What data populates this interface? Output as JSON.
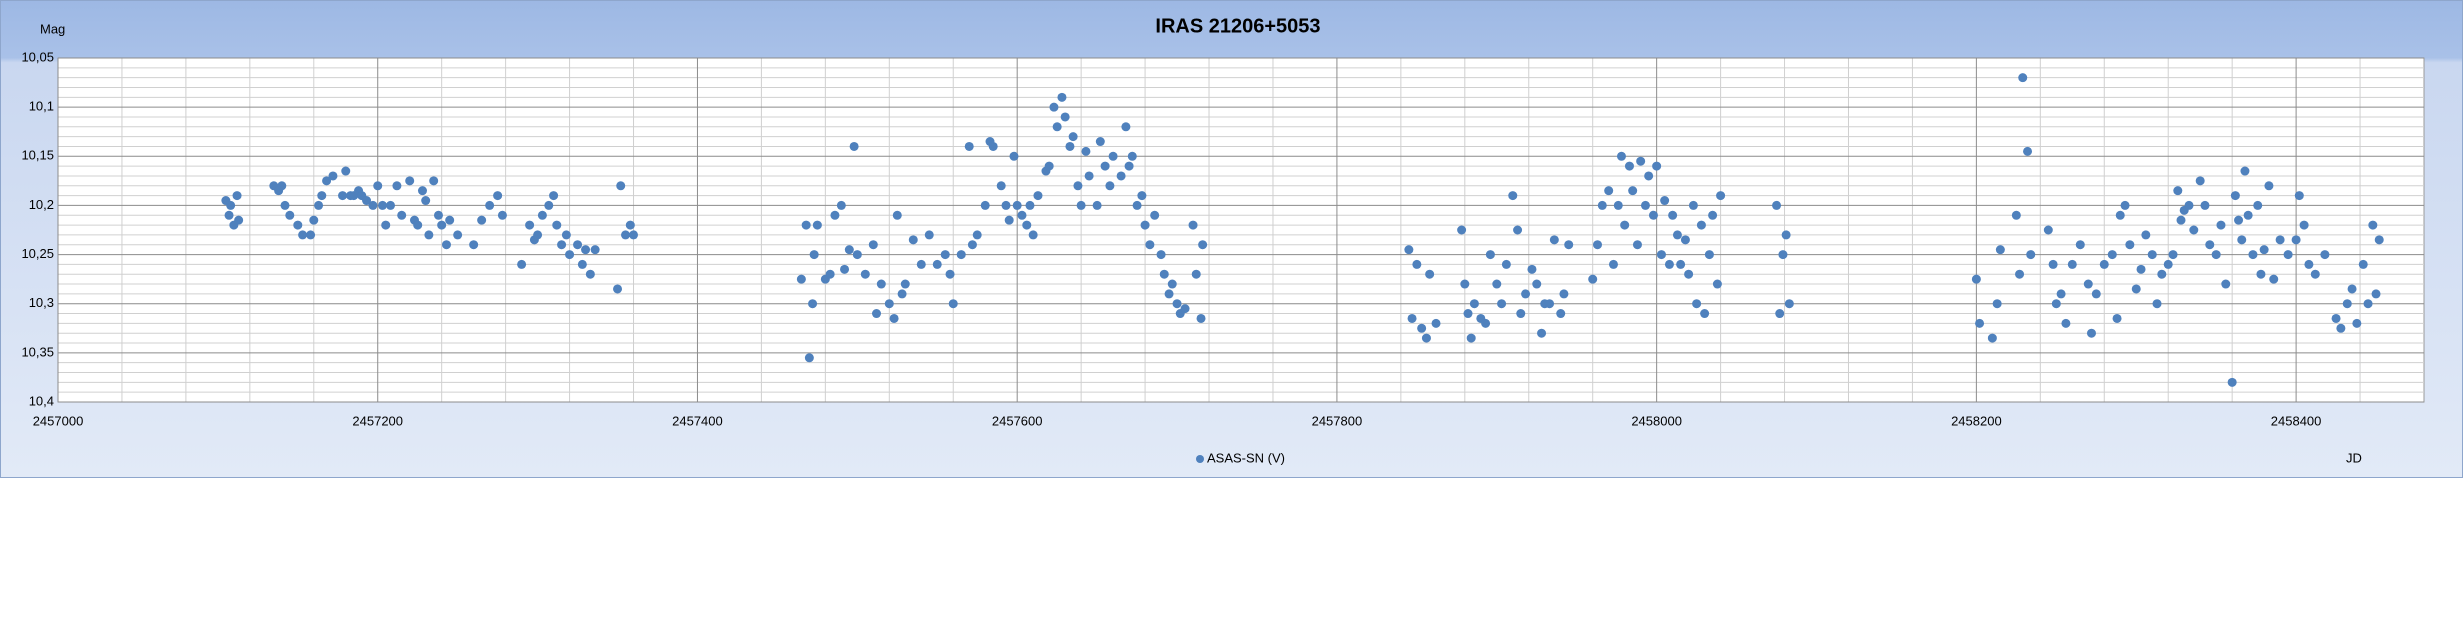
{
  "chart_data": {
    "type": "scatter",
    "title": "IRAS 21206+5053",
    "ylabel": "Mag",
    "xlabel": "JD",
    "xlim": [
      2457000,
      2458480
    ],
    "ylim": [
      10.05,
      10.4
    ],
    "y_reversed": true,
    "grid": true,
    "legend": "bottom",
    "xticks": [
      2457000,
      2457200,
      2457400,
      2457600,
      2457800,
      2458000,
      2458200,
      2458400
    ],
    "yticks": [
      {
        "value": 10.05,
        "label": "10,05"
      },
      {
        "value": 10.1,
        "label": "10,1"
      },
      {
        "value": 10.15,
        "label": "10,15"
      },
      {
        "value": 10.2,
        "label": "10,2"
      },
      {
        "value": 10.25,
        "label": "10,25"
      },
      {
        "value": 10.3,
        "label": "10,3"
      },
      {
        "value": 10.35,
        "label": "10,35"
      },
      {
        "value": 10.4,
        "label": "10,4"
      }
    ],
    "xminorticks": [
      2457040,
      2457080,
      2457120,
      2457160,
      2457240,
      2457280,
      2457320,
      2457360,
      2457440,
      2457480,
      2457520,
      2457560,
      2457640,
      2457680,
      2457720,
      2457760,
      2457840,
      2457880,
      2457920,
      2457960,
      2458040,
      2458080,
      2458120,
      2458160,
      2458240,
      2458280,
      2458320,
      2458360,
      2458440
    ],
    "yminorticks": [
      10.06,
      10.07,
      10.08,
      10.09,
      10.11,
      10.12,
      10.13,
      10.14,
      10.16,
      10.17,
      10.18,
      10.19,
      10.21,
      10.22,
      10.23,
      10.24,
      10.26,
      10.27,
      10.28,
      10.29,
      10.31,
      10.32,
      10.33,
      10.34,
      10.36,
      10.37,
      10.38,
      10.39
    ],
    "series": [
      {
        "name": "ASAS-SN (V)",
        "color": "#4f81bd",
        "x": [
          2457105,
          2457107,
          2457108,
          2457110,
          2457112,
          2457113,
          2457135,
          2457138,
          2457140,
          2457142,
          2457145,
          2457150,
          2457153,
          2457158,
          2457160,
          2457163,
          2457165,
          2457168,
          2457172,
          2457178,
          2457180,
          2457183,
          2457185,
          2457188,
          2457190,
          2457193,
          2457197,
          2457200,
          2457203,
          2457205,
          2457208,
          2457212,
          2457215,
          2457220,
          2457223,
          2457225,
          2457228,
          2457230,
          2457232,
          2457235,
          2457238,
          2457240,
          2457243,
          2457245,
          2457250,
          2457260,
          2457265,
          2457270,
          2457275,
          2457278,
          2457290,
          2457295,
          2457298,
          2457300,
          2457303,
          2457307,
          2457310,
          2457312,
          2457315,
          2457318,
          2457320,
          2457325,
          2457328,
          2457330,
          2457333,
          2457336,
          2457350,
          2457352,
          2457355,
          2457358,
          2457360,
          2457465,
          2457468,
          2457470,
          2457472,
          2457473,
          2457475,
          2457480,
          2457483,
          2457486,
          2457490,
          2457492,
          2457495,
          2457498,
          2457500,
          2457505,
          2457510,
          2457512,
          2457515,
          2457520,
          2457523,
          2457525,
          2457528,
          2457530,
          2457535,
          2457540,
          2457545,
          2457550,
          2457555,
          2457558,
          2457560,
          2457565,
          2457570,
          2457572,
          2457575,
          2457580,
          2457583,
          2457585,
          2457590,
          2457593,
          2457595,
          2457598,
          2457600,
          2457603,
          2457606,
          2457608,
          2457610,
          2457613,
          2457618,
          2457620,
          2457623,
          2457625,
          2457628,
          2457630,
          2457633,
          2457635,
          2457638,
          2457640,
          2457643,
          2457645,
          2457650,
          2457652,
          2457655,
          2457658,
          2457660,
          2457665,
          2457668,
          2457670,
          2457672,
          2457675,
          2457678,
          2457680,
          2457683,
          2457686,
          2457690,
          2457692,
          2457695,
          2457697,
          2457700,
          2457702,
          2457705,
          2457710,
          2457712,
          2457715,
          2457716,
          2457845,
          2457847,
          2457850,
          2457853,
          2457856,
          2457858,
          2457862,
          2457878,
          2457880,
          2457882,
          2457884,
          2457886,
          2457890,
          2457893,
          2457896,
          2457900,
          2457903,
          2457906,
          2457910,
          2457913,
          2457915,
          2457918,
          2457922,
          2457925,
          2457928,
          2457930,
          2457933,
          2457936,
          2457940,
          2457942,
          2457945,
          2457960,
          2457963,
          2457966,
          2457970,
          2457973,
          2457976,
          2457978,
          2457980,
          2457983,
          2457985,
          2457988,
          2457990,
          2457993,
          2457995,
          2457998,
          2458000,
          2458003,
          2458005,
          2458008,
          2458010,
          2458013,
          2458015,
          2458018,
          2458020,
          2458023,
          2458025,
          2458028,
          2458030,
          2458033,
          2458035,
          2458038,
          2458040,
          2458075,
          2458077,
          2458079,
          2458081,
          2458083,
          2458200,
          2458202,
          2458210,
          2458213,
          2458215,
          2458225,
          2458227,
          2458229,
          2458232,
          2458234,
          2458245,
          2458248,
          2458250,
          2458253,
          2458256,
          2458260,
          2458265,
          2458270,
          2458272,
          2458275,
          2458280,
          2458285,
          2458288,
          2458290,
          2458293,
          2458296,
          2458300,
          2458303,
          2458306,
          2458310,
          2458313,
          2458316,
          2458320,
          2458323,
          2458326,
          2458328,
          2458330,
          2458333,
          2458336,
          2458340,
          2458343,
          2458346,
          2458350,
          2458353,
          2458356,
          2458360,
          2458362,
          2458364,
          2458366,
          2458368,
          2458370,
          2458373,
          2458376,
          2458378,
          2458380,
          2458383,
          2458386,
          2458390,
          2458395,
          2458400,
          2458402,
          2458405,
          2458408,
          2458412,
          2458418,
          2458425,
          2458428,
          2458432,
          2458435,
          2458438,
          2458442,
          2458445,
          2458448,
          2458450,
          2458452
        ],
        "values": [
          10.195,
          10.21,
          10.2,
          10.22,
          10.19,
          10.215,
          10.18,
          10.185,
          10.18,
          10.2,
          10.21,
          10.22,
          10.23,
          10.23,
          10.215,
          10.2,
          10.19,
          10.175,
          10.17,
          10.19,
          10.165,
          10.19,
          10.19,
          10.185,
          10.19,
          10.195,
          10.2,
          10.18,
          10.2,
          10.22,
          10.2,
          10.18,
          10.21,
          10.175,
          10.215,
          10.22,
          10.185,
          10.195,
          10.23,
          10.175,
          10.21,
          10.22,
          10.24,
          10.215,
          10.23,
          10.24,
          10.215,
          10.2,
          10.19,
          10.21,
          10.26,
          10.22,
          10.235,
          10.23,
          10.21,
          10.2,
          10.19,
          10.22,
          10.24,
          10.23,
          10.25,
          10.24,
          10.26,
          10.245,
          10.27,
          10.245,
          10.285,
          10.18,
          10.23,
          10.22,
          10.23,
          10.275,
          10.22,
          10.355,
          10.3,
          10.25,
          10.22,
          10.275,
          10.27,
          10.21,
          10.2,
          10.265,
          10.245,
          10.14,
          10.25,
          10.27,
          10.24,
          10.31,
          10.28,
          10.3,
          10.315,
          10.21,
          10.29,
          10.28,
          10.235,
          10.26,
          10.23,
          10.26,
          10.25,
          10.27,
          10.3,
          10.25,
          10.14,
          10.24,
          10.23,
          10.2,
          10.135,
          10.14,
          10.18,
          10.2,
          10.215,
          10.15,
          10.2,
          10.21,
          10.22,
          10.2,
          10.23,
          10.19,
          10.165,
          10.16,
          10.1,
          10.12,
          10.09,
          10.11,
          10.14,
          10.13,
          10.18,
          10.2,
          10.145,
          10.17,
          10.2,
          10.135,
          10.16,
          10.18,
          10.15,
          10.17,
          10.12,
          10.16,
          10.15,
          10.2,
          10.19,
          10.22,
          10.24,
          10.21,
          10.25,
          10.27,
          10.29,
          10.28,
          10.3,
          10.31,
          10.305,
          10.22,
          10.27,
          10.315,
          10.24,
          10.245,
          10.315,
          10.26,
          10.325,
          10.335,
          10.27,
          10.32,
          10.225,
          10.28,
          10.31,
          10.335,
          10.3,
          10.315,
          10.32,
          10.25,
          10.28,
          10.3,
          10.26,
          10.19,
          10.225,
          10.31,
          10.29,
          10.265,
          10.28,
          10.33,
          10.3,
          10.3,
          10.235,
          10.31,
          10.29,
          10.24,
          10.275,
          10.24,
          10.2,
          10.185,
          10.26,
          10.2,
          10.15,
          10.22,
          10.16,
          10.185,
          10.24,
          10.155,
          10.2,
          10.17,
          10.21,
          10.16,
          10.25,
          10.195,
          10.26,
          10.21,
          10.23,
          10.26,
          10.235,
          10.27,
          10.2,
          10.3,
          10.22,
          10.31,
          10.25,
          10.21,
          10.28,
          10.19,
          10.2,
          10.31,
          10.25,
          10.23,
          10.3,
          10.275,
          10.32,
          10.335,
          10.3,
          10.245,
          10.21,
          10.27,
          10.07,
          10.145,
          10.25,
          10.225,
          10.26,
          10.3,
          10.29,
          10.32,
          10.26,
          10.24,
          10.28,
          10.33,
          10.29,
          10.26,
          10.25,
          10.315,
          10.21,
          10.2,
          10.24,
          10.285,
          10.265,
          10.23,
          10.25,
          10.3,
          10.27,
          10.26,
          10.25,
          10.185,
          10.215,
          10.205,
          10.2,
          10.225,
          10.175,
          10.2,
          10.24,
          10.25,
          10.22,
          10.28,
          10.38,
          10.19,
          10.215,
          10.235,
          10.165,
          10.21,
          10.25,
          10.2,
          10.27,
          10.245,
          10.18,
          10.275,
          10.235,
          10.25,
          10.235,
          10.19,
          10.22,
          10.26,
          10.27,
          10.25,
          10.315,
          10.325,
          10.3,
          10.285,
          10.32,
          10.26,
          10.3,
          10.22,
          10.29,
          10.235
        ]
      }
    ]
  }
}
